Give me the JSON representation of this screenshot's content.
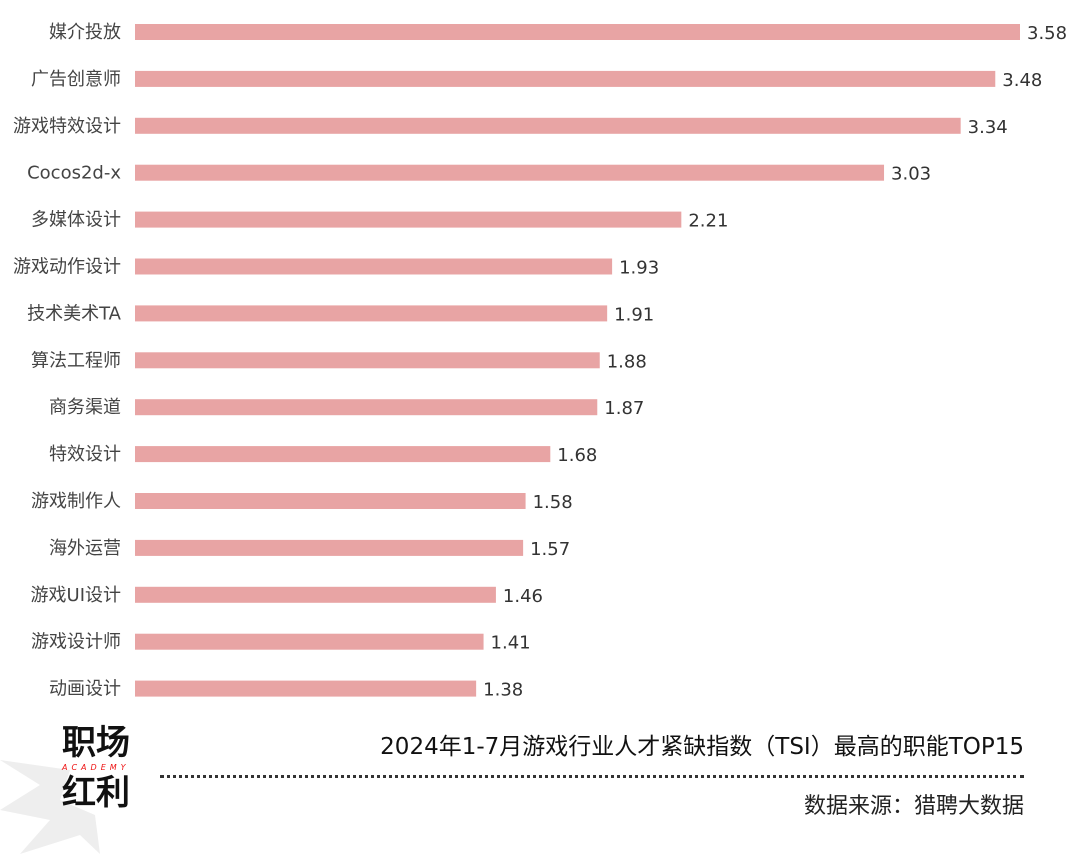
{
  "chart_data": {
    "type": "bar",
    "orientation": "horizontal",
    "title": "2024年1-7月游戏行业人才紧缺指数（TSI）最高的职能TOP15",
    "categories": [
      "媒介投放",
      "广告创意师",
      "游戏特效设计",
      "Cocos2d-x",
      "多媒体设计",
      "游戏动作设计",
      "技术美术TA",
      "算法工程师",
      "商务渠道",
      "特效设计",
      "游戏制作人",
      "海外运营",
      "游戏UI设计",
      "游戏设计师",
      "动画设计"
    ],
    "values": [
      3.58,
      3.48,
      3.34,
      3.03,
      2.21,
      1.93,
      1.91,
      1.88,
      1.87,
      1.68,
      1.58,
      1.57,
      1.46,
      1.41,
      1.38
    ],
    "value_labels": [
      "3.58",
      "3.48",
      "3.34",
      "3.03",
      "2.21",
      "1.93",
      "1.91",
      "1.88",
      "1.87",
      "1.68",
      "1.58",
      "1.57",
      "1.46",
      "1.41",
      "1.38"
    ],
    "xlim": [
      0,
      3.58
    ],
    "grid": false,
    "bar_color": "#e8a4a4"
  },
  "footer": {
    "source": "数据来源：猎聘大数据",
    "logo_text": [
      "职场",
      "红利"
    ],
    "logo_sub": "ACADEMY"
  }
}
